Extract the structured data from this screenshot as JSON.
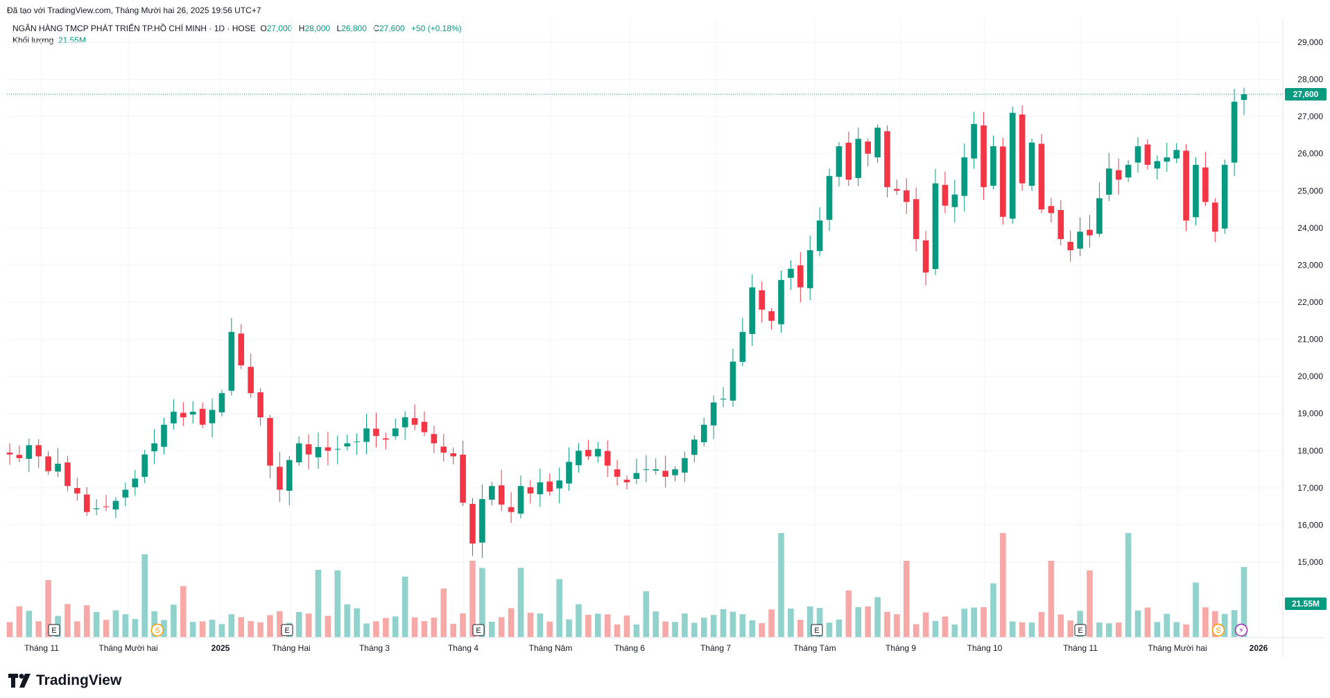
{
  "header": {
    "caption": "Đã tạo với TradingView.com, Tháng Mười hai 26, 2025 19:56 UTC+7",
    "symbol": "NGÂN HÀNG TMCP PHÁT TRIỂN TP.HỒ CHÍ MINH · 1D · HOSE",
    "open_label": "O",
    "open": "27,000",
    "high_label": "H",
    "high": "28,000",
    "low_label": "L",
    "low": "26,800",
    "close_label": "C",
    "close": "27,600",
    "change": "+50 (+0.18%)",
    "volume_label": "Khối lượng",
    "volume": "21.55M"
  },
  "brand": {
    "name": "TradingView"
  },
  "colors": {
    "up": "#089981",
    "down": "#f23645",
    "vol_up": "#92d2cc",
    "vol_down": "#f7a9a7",
    "grid": "#f0f3fa"
  },
  "chart_data": {
    "type": "candlestick",
    "y_ticks": [
      "29,000",
      "28,000",
      "27,000",
      "26,000",
      "25,000",
      "24,000",
      "23,000",
      "22,000",
      "21,000",
      "20,000",
      "19,000",
      "18,000",
      "17,000",
      "16,000",
      "15,000"
    ],
    "ylim": [
      14000,
      29500
    ],
    "x_ticks": [
      "Tháng 11",
      "Tháng Mười hai",
      "2025",
      "Tháng Hai",
      "Tháng 3",
      "Tháng 4",
      "Tháng Năm",
      "Tháng 6",
      "Tháng 7",
      "Tháng Tám",
      "Tháng 9",
      "Tháng 10",
      "Tháng 11",
      "Tháng Mười hai",
      "2026"
    ],
    "last_price_label": "27,600",
    "last_volume_label": "21.55M",
    "event_markers": [
      {
        "type": "earnings",
        "label": "E",
        "position": "Tháng 11 2024"
      },
      {
        "type": "dividend",
        "label": "S",
        "position": "Tháng Mười hai 2024"
      },
      {
        "type": "earnings",
        "label": "E",
        "position": "Tháng Hai 2025"
      },
      {
        "type": "earnings",
        "label": "E",
        "position": "Tháng 4 2025"
      },
      {
        "type": "earnings",
        "label": "E",
        "position": "Tháng Tám 2025"
      },
      {
        "type": "earnings",
        "label": "E",
        "position": "Tháng 11 2025"
      },
      {
        "type": "dividend",
        "label": "S",
        "position": "Tháng Mười hai 2025"
      },
      {
        "type": "split",
        "label": "⚡",
        "position": "Tháng Mười hai 2025"
      }
    ],
    "close_path": [
      17900,
      17800,
      18150,
      17850,
      17450,
      17650,
      17050,
      16850,
      16350,
      16450,
      16500,
      16650,
      16950,
      17250,
      17900,
      18200,
      18700,
      19050,
      18900,
      19050,
      18700,
      19100,
      19550,
      21200,
      20300,
      19550,
      18900,
      17600,
      16950,
      17750,
      18200,
      17900,
      18100,
      18000,
      18050,
      18200,
      18250,
      18600,
      18400,
      18300,
      18600,
      18900,
      18700,
      18500,
      18200,
      17950,
      17850,
      16600,
      15500,
      16700,
      17050,
      16550,
      16350,
      17050,
      16850,
      17150,
      16900,
      17200,
      17700,
      18000,
      17850,
      18050,
      17600,
      17300,
      17150,
      17400,
      17500,
      17500,
      17300,
      17500,
      17800,
      18300,
      18700,
      19300,
      19400,
      20400,
      21200,
      22400,
      21800,
      21500,
      22600,
      22900,
      22400,
      23400,
      24200,
      25400,
      26200,
      25300,
      26400,
      26000,
      26700,
      25100,
      25000,
      24700,
      23700,
      22800,
      25200,
      24600,
      24900,
      25900,
      26800,
      25100,
      26200,
      24300,
      27100,
      25200,
      26300,
      24500,
      24400,
      23700,
      23400,
      23900,
      23800,
      24800,
      25600,
      25300,
      25700,
      26200,
      25700,
      25800,
      25900,
      26100,
      24200,
      25700,
      24700,
      23900,
      25700,
      27400,
      27600
    ]
  }
}
